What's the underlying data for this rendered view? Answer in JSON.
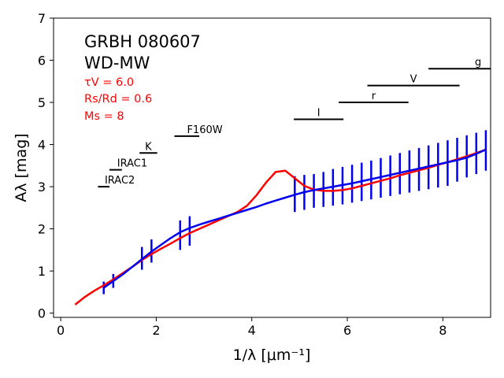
{
  "chart_data": {
    "type": "line",
    "xlabel": "1/λ [μm⁻¹]",
    "ylabel": "Aλ [mag]",
    "xlim": [
      -0.15,
      9.0
    ],
    "ylim": [
      -0.1,
      7.0
    ],
    "xticks": [
      "0",
      "2",
      "4",
      "6",
      "8"
    ],
    "yticks": [
      "0",
      "1",
      "2",
      "3",
      "4",
      "5",
      "6",
      "7"
    ],
    "annotation": {
      "name": "GRBH 080607",
      "model": "WD-MW",
      "tau": "τV = 6.0",
      "ratio": "Rs/Rd = 0.6",
      "mass": "Ms = 8",
      "param_color": "#ff0000"
    },
    "series": [
      {
        "color": "#ff0000",
        "x": [
          0.3,
          0.5,
          0.7,
          0.9,
          1.1,
          1.3,
          1.5,
          1.7,
          1.9,
          2.1,
          2.3,
          2.5,
          2.7,
          2.9,
          3.1,
          3.3,
          3.5,
          3.7,
          3.9,
          4.1,
          4.3,
          4.5,
          4.7,
          4.9,
          5.1,
          5.3,
          5.5,
          5.7,
          5.9,
          6.1,
          6.3,
          6.5,
          6.7,
          6.9,
          7.1,
          7.3,
          7.5,
          7.7,
          7.9,
          8.1,
          8.3,
          8.5,
          8.7,
          8.9
        ],
        "y": [
          0.2,
          0.38,
          0.53,
          0.66,
          0.8,
          0.95,
          1.1,
          1.26,
          1.4,
          1.53,
          1.65,
          1.78,
          1.9,
          2.0,
          2.1,
          2.2,
          2.3,
          2.4,
          2.55,
          2.8,
          3.1,
          3.35,
          3.38,
          3.2,
          3.02,
          2.93,
          2.9,
          2.9,
          2.92,
          2.96,
          3.02,
          3.08,
          3.14,
          3.2,
          3.27,
          3.33,
          3.39,
          3.45,
          3.52,
          3.58,
          3.65,
          3.72,
          3.8,
          3.88
        ]
      },
      {
        "color": "#0000ee",
        "x": [
          0.9,
          1.1,
          1.3,
          1.5,
          1.7,
          1.9,
          2.1,
          2.3,
          2.5,
          2.7,
          2.9,
          3.1,
          3.3,
          3.5,
          3.7,
          3.9,
          4.1,
          4.3,
          4.5,
          4.7,
          4.9,
          5.1,
          5.3,
          5.5,
          5.7,
          5.9,
          6.1,
          6.3,
          6.5,
          6.7,
          6.9,
          7.1,
          7.3,
          7.5,
          7.7,
          7.9,
          8.1,
          8.3,
          8.5,
          8.7,
          8.9
        ],
        "y": [
          0.6,
          0.76,
          0.92,
          1.1,
          1.28,
          1.46,
          1.62,
          1.78,
          1.92,
          2.02,
          2.1,
          2.17,
          2.24,
          2.31,
          2.38,
          2.45,
          2.52,
          2.6,
          2.67,
          2.74,
          2.81,
          2.87,
          2.92,
          2.96,
          3.0,
          3.04,
          3.08,
          3.13,
          3.18,
          3.23,
          3.28,
          3.33,
          3.38,
          3.43,
          3.48,
          3.53,
          3.58,
          3.63,
          3.69,
          3.78,
          3.88
        ]
      }
    ],
    "error_bars": {
      "color": "#0000ee",
      "points": [
        {
          "x": 0.9,
          "lo": 0.45,
          "hi": 0.75
        },
        {
          "x": 1.1,
          "lo": 0.6,
          "hi": 0.93
        },
        {
          "x": 1.7,
          "lo": 1.03,
          "hi": 1.57
        },
        {
          "x": 1.9,
          "lo": 1.2,
          "hi": 1.75
        },
        {
          "x": 2.5,
          "lo": 1.5,
          "hi": 2.2
        },
        {
          "x": 2.7,
          "lo": 1.6,
          "hi": 2.3
        },
        {
          "x": 4.9,
          "lo": 2.4,
          "hi": 3.25
        },
        {
          "x": 5.1,
          "lo": 2.45,
          "hi": 3.28
        },
        {
          "x": 5.3,
          "lo": 2.5,
          "hi": 3.3
        },
        {
          "x": 5.5,
          "lo": 2.52,
          "hi": 3.35
        },
        {
          "x": 5.7,
          "lo": 2.55,
          "hi": 3.42
        },
        {
          "x": 5.9,
          "lo": 2.58,
          "hi": 3.47
        },
        {
          "x": 6.1,
          "lo": 2.62,
          "hi": 3.52
        },
        {
          "x": 6.3,
          "lo": 2.66,
          "hi": 3.57
        },
        {
          "x": 6.5,
          "lo": 2.7,
          "hi": 3.62
        },
        {
          "x": 6.7,
          "lo": 2.74,
          "hi": 3.68
        },
        {
          "x": 6.9,
          "lo": 2.78,
          "hi": 3.74
        },
        {
          "x": 7.1,
          "lo": 2.82,
          "hi": 3.8
        },
        {
          "x": 7.3,
          "lo": 2.86,
          "hi": 3.86
        },
        {
          "x": 7.5,
          "lo": 2.9,
          "hi": 3.92
        },
        {
          "x": 7.7,
          "lo": 2.94,
          "hi": 3.98
        },
        {
          "x": 7.9,
          "lo": 2.98,
          "hi": 4.04
        },
        {
          "x": 8.1,
          "lo": 3.02,
          "hi": 4.1
        },
        {
          "x": 8.3,
          "lo": 3.12,
          "hi": 4.16
        },
        {
          "x": 8.5,
          "lo": 3.22,
          "hi": 4.22
        },
        {
          "x": 8.7,
          "lo": 3.3,
          "hi": 4.28
        },
        {
          "x": 8.9,
          "lo": 3.38,
          "hi": 4.34
        }
      ]
    },
    "bands": [
      {
        "label": "IRAC2",
        "x1": 0.78,
        "x2": 1.02,
        "y": 3.0
      },
      {
        "label": "IRAC1",
        "x1": 1.02,
        "x2": 1.28,
        "y": 3.4
      },
      {
        "label": "K",
        "x1": 1.65,
        "x2": 2.02,
        "y": 3.8
      },
      {
        "label": "F160W",
        "x1": 2.38,
        "x2": 2.9,
        "y": 4.2
      },
      {
        "label": "I",
        "x1": 4.88,
        "x2": 5.92,
        "y": 4.6
      },
      {
        "label": "r",
        "x1": 5.82,
        "x2": 7.28,
        "y": 5.0
      },
      {
        "label": "V",
        "x1": 6.42,
        "x2": 8.35,
        "y": 5.4
      },
      {
        "label": "g",
        "x1": 7.7,
        "x2": 9.05,
        "y": 5.8
      }
    ]
  }
}
